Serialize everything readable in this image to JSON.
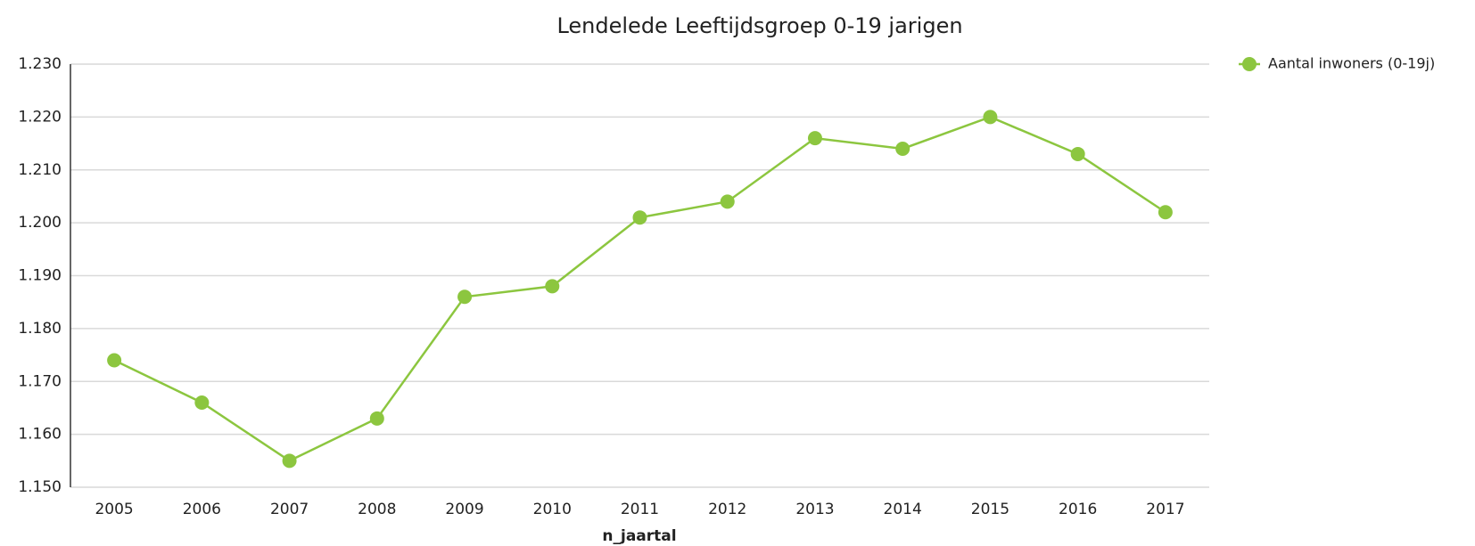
{
  "chart_data": {
    "type": "line",
    "title": "Lendelede  Leeftijdsgroep 0-19 jarigen",
    "x_label": "n_jaartal",
    "categories": [
      "2005",
      "2006",
      "2007",
      "2008",
      "2009",
      "2010",
      "2011",
      "2012",
      "2013",
      "2014",
      "2015",
      "2016",
      "2017"
    ],
    "series": [
      {
        "name": "Aantal inwoners (0-19j)",
        "color": "#8cc63f",
        "values": [
          1174,
          1166,
          1155,
          1163,
          1186,
          1188,
          1201,
          1204,
          1216,
          1214,
          1220,
          1213,
          1202
        ]
      }
    ],
    "ylim": [
      1150,
      1230
    ],
    "yticks": [
      {
        "value": 1150,
        "label": "1.150"
      },
      {
        "value": 1160,
        "label": "1.160"
      },
      {
        "value": 1170,
        "label": "1.170"
      },
      {
        "value": 1180,
        "label": "1.180"
      },
      {
        "value": 1190,
        "label": "1.190"
      },
      {
        "value": 1200,
        "label": "1.200"
      },
      {
        "value": 1210,
        "label": "1.210"
      },
      {
        "value": 1220,
        "label": "1.220"
      },
      {
        "value": 1230,
        "label": "1.230"
      }
    ],
    "grid": true,
    "legend": "top-right"
  }
}
